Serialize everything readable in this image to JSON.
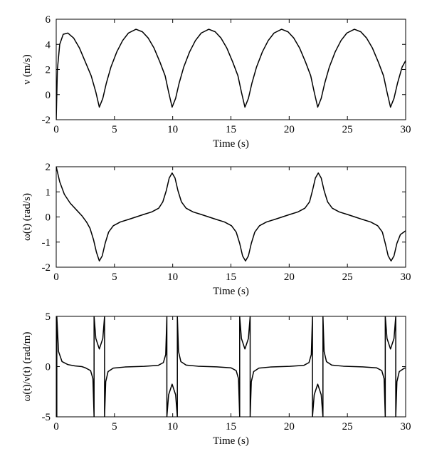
{
  "chart_data": [
    {
      "type": "line",
      "x_label": "Time (s)",
      "y_label": "ν (m/s)",
      "color": "#000000",
      "xlim": [
        0,
        30
      ],
      "xticks": [
        0,
        5,
        10,
        15,
        20,
        25,
        30
      ],
      "ylim": [
        -2,
        6
      ],
      "yticks": [
        -2,
        0,
        2,
        4,
        6
      ],
      "x": [
        0,
        0.1,
        0.3,
        0.6,
        1.0,
        1.5,
        2.0,
        2.5,
        3.0,
        3.4,
        3.7,
        4.0,
        4.3,
        4.7,
        5.2,
        5.7,
        6.2,
        6.85,
        7.4,
        7.9,
        8.4,
        8.9,
        9.35,
        9.65,
        9.95,
        10.25,
        10.55,
        10.95,
        11.45,
        11.95,
        12.45,
        13.1,
        13.65,
        14.15,
        14.65,
        15.15,
        15.6,
        15.9,
        16.2,
        16.5,
        16.8,
        17.2,
        17.7,
        18.2,
        18.7,
        19.35,
        19.9,
        20.4,
        20.9,
        21.4,
        21.85,
        22.15,
        22.45,
        22.75,
        23.05,
        23.45,
        23.95,
        24.45,
        24.95,
        25.6,
        26.15,
        26.65,
        27.15,
        27.65,
        28.1,
        28.4,
        28.7,
        29.0,
        29.3,
        29.7,
        30
      ],
      "values": [
        -2,
        2.0,
        4.0,
        4.8,
        4.9,
        4.5,
        3.7,
        2.6,
        1.5,
        0.2,
        -1,
        -0.3,
        0.9,
        2.2,
        3.4,
        4.3,
        4.9,
        5.2,
        5.0,
        4.5,
        3.7,
        2.6,
        1.5,
        0.2,
        -1,
        -0.3,
        0.9,
        2.2,
        3.4,
        4.3,
        4.9,
        5.2,
        5.0,
        4.5,
        3.7,
        2.6,
        1.5,
        0.2,
        -1,
        -0.3,
        0.9,
        2.2,
        3.4,
        4.3,
        4.9,
        5.2,
        5.0,
        4.5,
        3.7,
        2.6,
        1.5,
        0.2,
        -1,
        -0.3,
        0.9,
        2.2,
        3.4,
        4.3,
        4.9,
        5.2,
        5.0,
        4.5,
        3.7,
        2.6,
        1.5,
        0.2,
        -1,
        -0.3,
        0.9,
        2.2,
        2.7
      ]
    },
    {
      "type": "line",
      "x_label": "Time (s)",
      "y_label": "ω(t) (rad/s)",
      "color": "#000000",
      "xlim": [
        0,
        30
      ],
      "xticks": [
        0,
        5,
        10,
        15,
        20,
        25,
        30
      ],
      "ylim": [
        -2,
        2
      ],
      "yticks": [
        -2,
        -1,
        0,
        1,
        2
      ],
      "x": [
        0,
        0.3,
        0.7,
        1.2,
        1.8,
        2.2,
        2.6,
        2.9,
        3.2,
        3.45,
        3.7,
        3.95,
        4.2,
        4.5,
        4.9,
        5.5,
        6.2,
        6.85,
        7.5,
        8.2,
        8.8,
        9.15,
        9.45,
        9.7,
        9.95,
        10.2,
        10.45,
        10.75,
        11.15,
        11.75,
        12.45,
        13.1,
        13.75,
        14.45,
        15.05,
        15.45,
        15.75,
        16.0,
        16.25,
        16.5,
        16.75,
        17.05,
        17.45,
        18.05,
        18.75,
        19.4,
        20.05,
        20.75,
        21.35,
        21.75,
        22.0,
        22.25,
        22.5,
        22.75,
        23.0,
        23.3,
        23.7,
        24.3,
        25.0,
        25.65,
        26.3,
        27.0,
        27.6,
        28.0,
        28.25,
        28.5,
        28.75,
        29.0,
        29.25,
        29.55,
        30
      ],
      "values": [
        2.0,
        1.4,
        0.9,
        0.55,
        0.25,
        0.05,
        -0.2,
        -0.45,
        -0.9,
        -1.4,
        -1.75,
        -1.55,
        -1.05,
        -0.6,
        -0.35,
        -0.2,
        -0.1,
        0,
        0.1,
        0.2,
        0.35,
        0.6,
        1.05,
        1.55,
        1.75,
        1.55,
        1.05,
        0.6,
        0.35,
        0.2,
        0.1,
        0,
        -0.1,
        -0.2,
        -0.35,
        -0.6,
        -1.05,
        -1.55,
        -1.75,
        -1.55,
        -1.05,
        -0.6,
        -0.35,
        -0.2,
        -0.1,
        0,
        0.1,
        0.2,
        0.35,
        0.6,
        1.05,
        1.55,
        1.75,
        1.55,
        1.05,
        0.6,
        0.35,
        0.2,
        0.1,
        0,
        -0.1,
        -0.2,
        -0.35,
        -0.6,
        -1.05,
        -1.55,
        -1.75,
        -1.55,
        -1.05,
        -0.7,
        -0.55
      ]
    },
    {
      "type": "line",
      "x_label": "Time (s)",
      "y_label": "ω(t)/ν(t) (rad/m)",
      "color": "#000000",
      "xlim": [
        0,
        30
      ],
      "xticks": [
        0,
        5,
        10,
        15,
        20,
        25,
        30
      ],
      "ylim": [
        -5,
        5
      ],
      "yticks": [
        -5,
        0,
        5
      ],
      "x": [
        0,
        0.05,
        0.05,
        0.2,
        0.5,
        1.0,
        1.6,
        2.2,
        2.5,
        2.95,
        3.15,
        3.25,
        3.25,
        3.4,
        3.7,
        4.0,
        4.15,
        4.15,
        4.25,
        4.45,
        4.9,
        5.9,
        6.85,
        7.55,
        8.75,
        9.2,
        9.4,
        9.5,
        9.5,
        9.65,
        9.95,
        10.25,
        10.4,
        10.4,
        10.5,
        10.7,
        11.15,
        12.15,
        13.1,
        13.8,
        15.0,
        15.45,
        15.65,
        15.75,
        15.75,
        15.9,
        16.2,
        16.5,
        16.65,
        16.65,
        16.75,
        16.95,
        17.4,
        18.4,
        19.35,
        20.05,
        21.25,
        21.7,
        21.9,
        22.0,
        22.0,
        22.15,
        22.45,
        22.75,
        22.9,
        22.9,
        23.0,
        23.2,
        23.65,
        24.65,
        25.6,
        26.3,
        27.5,
        27.95,
        28.15,
        28.25,
        28.25,
        28.4,
        28.7,
        29.0,
        29.15,
        29.15,
        29.25,
        29.45,
        29.9,
        30
      ],
      "values": [
        -1,
        -5,
        5,
        1.5,
        0.5,
        0.2,
        0.07,
        0,
        -0.12,
        -0.4,
        -1.2,
        -5,
        5,
        2.8,
        1.75,
        2.8,
        5,
        -5,
        -1.5,
        -0.5,
        -0.15,
        -0.04,
        0,
        0.03,
        0.12,
        0.4,
        1.2,
        5,
        -5,
        -2.8,
        -1.75,
        -2.8,
        -5,
        5,
        1.5,
        0.5,
        0.15,
        0.04,
        0,
        -0.03,
        -0.12,
        -0.4,
        -1.2,
        -5,
        5,
        2.8,
        1.75,
        2.8,
        5,
        -5,
        -1.5,
        -0.5,
        -0.15,
        -0.04,
        0,
        0.03,
        0.12,
        0.4,
        1.2,
        5,
        -5,
        -2.8,
        -1.75,
        -2.8,
        -5,
        5,
        1.5,
        0.5,
        0.15,
        0.04,
        0,
        -0.03,
        -0.12,
        -0.4,
        -1.2,
        -5,
        5,
        2.8,
        1.75,
        2.8,
        5,
        -5,
        -1.5,
        -0.5,
        -0.15,
        -0.14
      ]
    }
  ]
}
